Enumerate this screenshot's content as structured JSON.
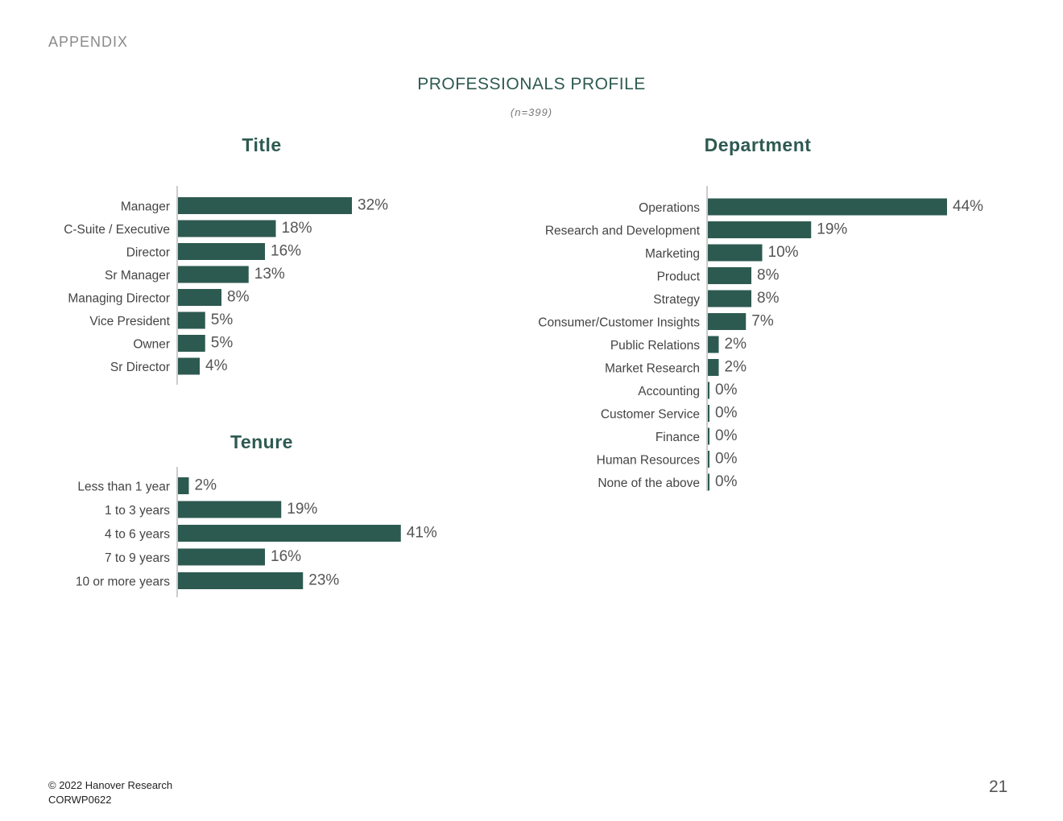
{
  "section_label": "APPENDIX",
  "page_title": "PROFESSIONALS PROFILE",
  "sample_size": "(n=399)",
  "colors": {
    "bar": "#2d5a50",
    "title": "#2e5a50",
    "label": "#444444",
    "value": "#555555"
  },
  "footer": {
    "copyright": "© 2022 Hanover Research",
    "code": "CORWP0622",
    "page_number": "21"
  },
  "chart_data": [
    {
      "id": "title",
      "type": "bar",
      "orientation": "horizontal",
      "title": "Title",
      "categories": [
        "Manager",
        "C-Suite / Executive",
        "Director",
        "Sr Manager",
        "Managing Director",
        "Vice President",
        "Owner",
        "Sr Director"
      ],
      "values": [
        32,
        18,
        16,
        13,
        8,
        5,
        5,
        4
      ],
      "value_labels": [
        "32%",
        "18%",
        "16%",
        "13%",
        "8%",
        "5%",
        "5%",
        "4%"
      ],
      "xlim": [
        0,
        50
      ]
    },
    {
      "id": "tenure",
      "type": "bar",
      "orientation": "horizontal",
      "title": "Tenure",
      "categories": [
        "Less than 1 year",
        "1 to 3 years",
        "4 to 6 years",
        "7 to 9 years",
        "10 or more years"
      ],
      "values": [
        2,
        19,
        41,
        16,
        23
      ],
      "value_labels": [
        "2%",
        "19%",
        "41%",
        "16%",
        "23%"
      ],
      "xlim": [
        0,
        50
      ]
    },
    {
      "id": "department",
      "type": "bar",
      "orientation": "horizontal",
      "title": "Department",
      "categories": [
        "Operations",
        "Research and  Development",
        "Marketing",
        "Product",
        "Strategy",
        "Consumer/Customer Insights",
        "Public Relations",
        "Market Research",
        "Accounting",
        "Customer Service",
        "Finance",
        "Human Resources",
        "None of the above"
      ],
      "values": [
        44,
        19,
        10,
        8,
        8,
        7,
        2,
        2,
        0,
        0,
        0,
        0,
        0
      ],
      "value_labels": [
        "44%",
        "19%",
        "10%",
        "8%",
        "8%",
        "7%",
        "2%",
        "2%",
        "0%",
        "0%",
        "0%",
        "0%",
        "0%"
      ],
      "xlim": [
        0,
        50
      ]
    }
  ]
}
